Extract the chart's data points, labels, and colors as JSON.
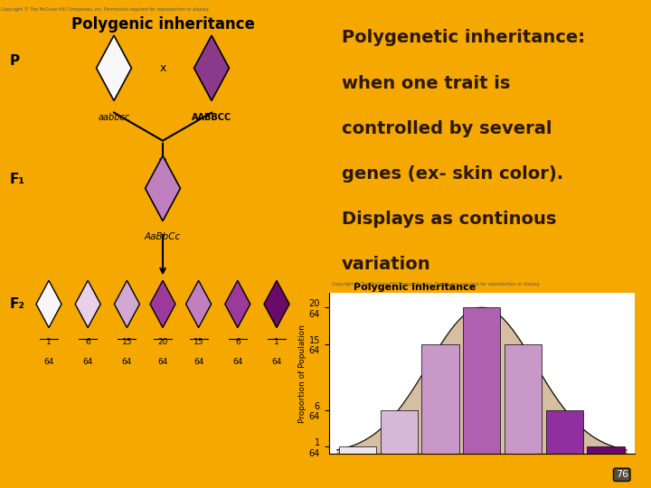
{
  "slide_bg": "#F5A800",
  "text_lines": [
    "Polygenetic inheritance:",
    "when one trait is",
    "controlled by several",
    "genes (ex- skin color).",
    "Displays as continous",
    "variation"
  ],
  "text_color": "#2B1800",
  "bar_values": [
    1,
    6,
    15,
    20,
    15,
    6,
    1
  ],
  "bar_colors": [
    "#EEE8EE",
    "#D8B8D8",
    "#C898C8",
    "#B060B0",
    "#C898C8",
    "#9030A0",
    "#6B0A6B"
  ],
  "curve_color": "#C8A882",
  "chart_title": "Polygenic inheritance",
  "ylabel": "Proportion of Population",
  "ytick_values": [
    1,
    6,
    15,
    20
  ],
  "ytick_labels": [
    "1\n64",
    "6\n64",
    "15\n64",
    "20\n64"
  ],
  "page_num": "76",
  "left_panel_bg": "#FFFFFF",
  "chart_bg": "#FFFFFF",
  "copyright_text": "Copyright © The McGraw-Hill Companies, Inc. Permission required for reproduction or display.",
  "f2_fracs": [
    "1",
    "6",
    "15",
    "20",
    "15",
    "6",
    "1"
  ],
  "f2_colors": [
    "#F8F4F8",
    "#E8D0E8",
    "#D0A8D0",
    "#9B3A9B",
    "#C080C0",
    "#9B3A9B",
    "#6B0A6B"
  ],
  "f2_x": [
    1.5,
    2.7,
    3.9,
    5.0,
    6.1,
    7.3,
    8.5
  ]
}
